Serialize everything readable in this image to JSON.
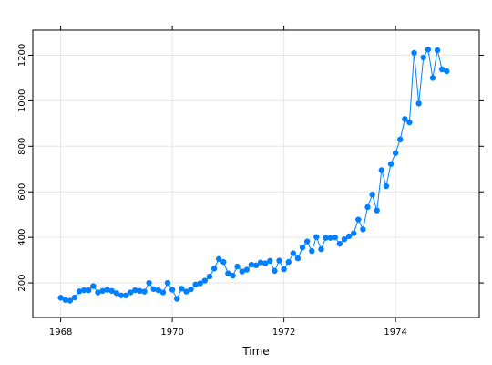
{
  "chart_data": {
    "type": "line",
    "xlabel": "Time",
    "ylabel": "",
    "xlim": [
      1967.5,
      1975.5
    ],
    "ylim": [
      48,
      1310
    ],
    "x_ticks": [
      1968,
      1970,
      1972,
      1974
    ],
    "y_ticks": [
      200,
      400,
      600,
      800,
      1000,
      1200
    ],
    "grid": true,
    "series_color": "#0080ff",
    "x_start": 1968,
    "x_step": 0.08333333,
    "series": [
      {
        "values": [
          135,
          125,
          122,
          136,
          163,
          168,
          168,
          186,
          158,
          165,
          170,
          165,
          155,
          145,
          145,
          158,
          168,
          165,
          162,
          200,
          173,
          168,
          158,
          200,
          170,
          130,
          175,
          162,
          172,
          193,
          198,
          210,
          228,
          263,
          305,
          292,
          242,
          232,
          272,
          250,
          258,
          280,
          277,
          290,
          286,
          297,
          253,
          298,
          260,
          292,
          330,
          308,
          356,
          382,
          340,
          402,
          348,
          398,
          398,
          400,
          372,
          392,
          405,
          418,
          478,
          435,
          533,
          588,
          518,
          695,
          625,
          722,
          770,
          830,
          920,
          905,
          1210,
          988,
          1190,
          1225,
          1100,
          1222,
          1138,
          1130
        ]
      }
    ]
  }
}
